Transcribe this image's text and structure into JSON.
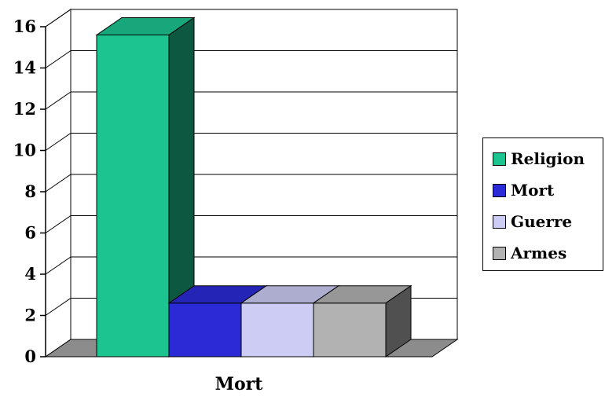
{
  "chart_data": {
    "type": "bar",
    "style": "3d-column",
    "categories": [
      "Mort"
    ],
    "series": [
      {
        "name": "Religion",
        "values": [
          15.6
        ],
        "color": "#1cc48f"
      },
      {
        "name": "Mort",
        "values": [
          2.6
        ],
        "color": "#2a2ad6"
      },
      {
        "name": "Guerre",
        "values": [
          2.6
        ],
        "color": "#ccccf5"
      },
      {
        "name": "Armes",
        "values": [
          2.6
        ],
        "color": "#b2b2b2"
      }
    ],
    "ylim": [
      0,
      16
    ],
    "yticks": [
      "0",
      "2",
      "4",
      "6",
      "8",
      "10",
      "12",
      "14",
      "16"
    ],
    "grid": true,
    "legend_position": "right"
  }
}
